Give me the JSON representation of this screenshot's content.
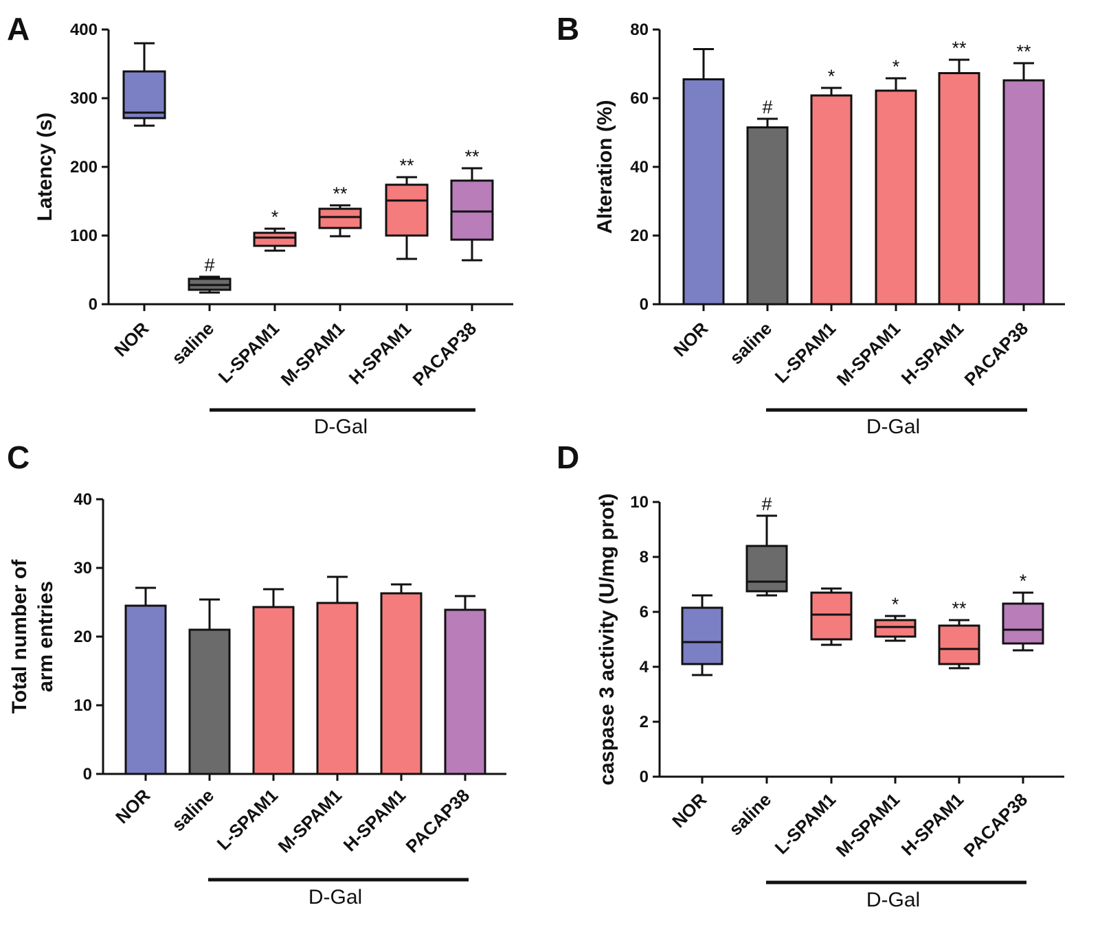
{
  "colors": {
    "NOR": "#7b7fc4",
    "saline": "#6b6b6b",
    "L-SPAM1": "#f47c7c",
    "M-SPAM1": "#f47c7c",
    "H-SPAM1": "#f47c7c",
    "PACAP38": "#b97dba"
  },
  "chart_data": [
    {
      "panel": "A",
      "type": "box",
      "ylabel": "Latency (s)",
      "ylim": [
        0,
        400
      ],
      "yticks": [
        0,
        100,
        200,
        300,
        400
      ],
      "categories": [
        "NOR",
        "saline",
        "L-SPAM1",
        "M-SPAM1",
        "H-SPAM1",
        "PACAP38"
      ],
      "group_label": "D-Gal",
      "group_categories": [
        "L-SPAM1",
        "M-SPAM1",
        "H-SPAM1",
        "PACAP38"
      ],
      "series": [
        {
          "name": "NOR",
          "min": 260,
          "q1": 271,
          "median": 279,
          "q3": 339,
          "max": 380,
          "sig": ""
        },
        {
          "name": "saline",
          "min": 17,
          "q1": 21,
          "median": 28,
          "q3": 37,
          "max": 40,
          "sig": "#"
        },
        {
          "name": "L-SPAM1",
          "min": 78,
          "q1": 85,
          "median": 97,
          "q3": 104,
          "max": 110,
          "sig": "*"
        },
        {
          "name": "M-SPAM1",
          "min": 99,
          "q1": 111,
          "median": 127,
          "q3": 139,
          "max": 144,
          "sig": "**"
        },
        {
          "name": "H-SPAM1",
          "min": 66,
          "q1": 100,
          "median": 151,
          "q3": 174,
          "max": 185,
          "sig": "**"
        },
        {
          "name": "PACAP38",
          "min": 64,
          "q1": 94,
          "median": 135,
          "q3": 180,
          "max": 198,
          "sig": "**"
        }
      ]
    },
    {
      "panel": "B",
      "type": "bar",
      "ylabel": "Alteration (%)",
      "ylim": [
        0,
        80
      ],
      "yticks": [
        0,
        20,
        40,
        60,
        80
      ],
      "categories": [
        "NOR",
        "saline",
        "L-SPAM1",
        "M-SPAM1",
        "H-SPAM1",
        "PACAP38"
      ],
      "group_label": "D-Gal",
      "group_categories": [
        "L-SPAM1",
        "M-SPAM1",
        "H-SPAM1",
        "PACAP38"
      ],
      "values": [
        65.5,
        51.5,
        60.8,
        62.2,
        67.3,
        65.2
      ],
      "errors": [
        8.8,
        2.5,
        2.2,
        3.6,
        3.9,
        5.0
      ],
      "sig": [
        "",
        "#",
        "*",
        "*",
        "**",
        "**"
      ]
    },
    {
      "panel": "C",
      "type": "bar",
      "ylabel": "Total number of arm entries",
      "ylim": [
        0,
        40
      ],
      "yticks": [
        0,
        10,
        20,
        30,
        40
      ],
      "categories": [
        "NOR",
        "saline",
        "L-SPAM1",
        "M-SPAM1",
        "H-SPAM1",
        "PACAP38"
      ],
      "group_label": "D-Gal",
      "group_categories": [
        "L-SPAM1",
        "M-SPAM1",
        "H-SPAM1",
        "PACAP38"
      ],
      "values": [
        24.5,
        21.0,
        24.3,
        24.9,
        26.3,
        23.9
      ],
      "errors": [
        2.6,
        4.4,
        2.6,
        3.8,
        1.3,
        2.0
      ],
      "sig": [
        "",
        "",
        "",
        "",
        "",
        ""
      ]
    },
    {
      "panel": "D",
      "type": "box",
      "ylabel": "caspase 3 activity (U/mg prot)",
      "ylim": [
        0,
        10
      ],
      "yticks": [
        0,
        2,
        4,
        6,
        8,
        10
      ],
      "categories": [
        "NOR",
        "saline",
        "L-SPAM1",
        "M-SPAM1",
        "H-SPAM1",
        "PACAP38"
      ],
      "group_label": "D-Gal",
      "group_categories": [
        "L-SPAM1",
        "M-SPAM1",
        "H-SPAM1",
        "PACAP38"
      ],
      "series": [
        {
          "name": "NOR",
          "min": 3.7,
          "q1": 4.1,
          "median": 4.9,
          "q3": 6.15,
          "max": 6.6,
          "sig": ""
        },
        {
          "name": "saline",
          "min": 6.6,
          "q1": 6.75,
          "median": 7.1,
          "q3": 8.4,
          "max": 9.5,
          "sig": "#"
        },
        {
          "name": "L-SPAM1",
          "min": 4.8,
          "q1": 5.0,
          "median": 5.9,
          "q3": 6.7,
          "max": 6.85,
          "sig": ""
        },
        {
          "name": "M-SPAM1",
          "min": 4.95,
          "q1": 5.1,
          "median": 5.45,
          "q3": 5.7,
          "max": 5.85,
          "sig": "*"
        },
        {
          "name": "H-SPAM1",
          "min": 3.95,
          "q1": 4.1,
          "median": 4.65,
          "q3": 5.5,
          "max": 5.7,
          "sig": "**"
        },
        {
          "name": "PACAP38",
          "min": 4.6,
          "q1": 4.85,
          "median": 5.35,
          "q3": 6.3,
          "max": 6.7,
          "sig": "*"
        }
      ]
    }
  ]
}
